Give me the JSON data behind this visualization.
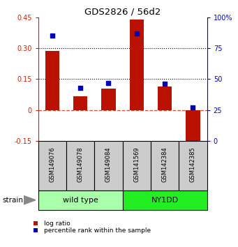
{
  "title": "GDS2826 / 56d2",
  "samples": [
    "GSM149076",
    "GSM149078",
    "GSM149084",
    "GSM141569",
    "GSM142384",
    "GSM142385"
  ],
  "log_ratio": [
    0.285,
    0.065,
    0.105,
    0.44,
    0.115,
    -0.19
  ],
  "percentile_rank": [
    85,
    43,
    47,
    87,
    46,
    27
  ],
  "groups": [
    {
      "label": "wild type",
      "indices": [
        0,
        1,
        2
      ],
      "color": "#AAFFAA"
    },
    {
      "label": "NY1DD",
      "indices": [
        3,
        4,
        5
      ],
      "color": "#22EE22"
    }
  ],
  "ylim_left": [
    -0.15,
    0.45
  ],
  "ylim_right": [
    0,
    100
  ],
  "yticks_left": [
    -0.15,
    0,
    0.15,
    0.3,
    0.45
  ],
  "yticks_right": [
    0,
    25,
    50,
    75,
    100
  ],
  "ytick_labels_left": [
    "-0.15",
    "0",
    "0.15",
    "0.30",
    "0.45"
  ],
  "ytick_labels_right": [
    "0",
    "25",
    "50",
    "75",
    "100%"
  ],
  "hlines_dotted": [
    0.15,
    0.3
  ],
  "hline_dashed": 0,
  "bar_color": "#BB1100",
  "square_color": "#0000BB",
  "bar_width": 0.5,
  "left_axis_color": "#CC2200",
  "right_axis_color": "#0000CC",
  "legend_items": [
    "log ratio",
    "percentile rank within the sample"
  ],
  "strain_label": "strain",
  "sample_box_color": "#CCCCCC",
  "arrow_color": "#888888"
}
